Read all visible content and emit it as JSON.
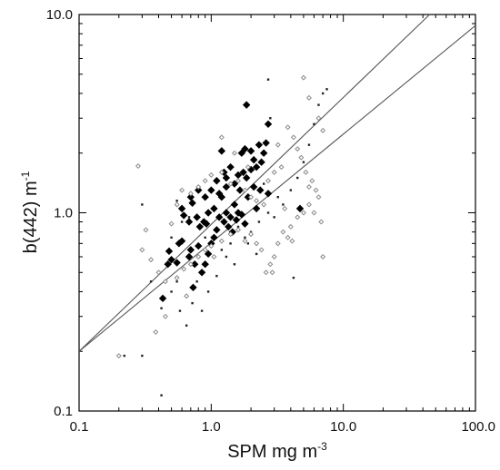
{
  "chart_data": {
    "type": "scatter",
    "title": "",
    "xlabel": "SPM mg m",
    "xlabel_sup": "-3",
    "ylabel": "b(442) m",
    "ylabel_sup": "-1",
    "xscale": "log",
    "yscale": "log",
    "xlim": [
      0.1,
      100.0
    ],
    "ylim": [
      0.1,
      10.0
    ],
    "xticks": [
      0.1,
      1.0,
      10.0,
      100.0
    ],
    "xtick_labels": [
      "0.1",
      "1.0",
      "10.0",
      "100.0"
    ],
    "yticks": [
      0.1,
      1.0,
      10.0
    ],
    "ytick_labels": [
      "0.1",
      "1.0",
      "10.0"
    ],
    "grid": false,
    "colors": {
      "large": "#000000",
      "small": "#222222",
      "open": "#8a8a8a",
      "line": "#555555"
    },
    "series": [
      {
        "marker": "filled-diamond-large",
        "points": [
          [
            0.43,
            0.37
          ],
          [
            0.47,
            0.55
          ],
          [
            0.5,
            0.58
          ],
          [
            0.48,
            0.64
          ],
          [
            0.55,
            0.56
          ],
          [
            0.6,
            0.72
          ],
          [
            0.68,
            0.6
          ],
          [
            0.73,
            0.42
          ],
          [
            0.7,
            0.65
          ],
          [
            0.8,
            0.68
          ],
          [
            0.85,
            0.5
          ],
          [
            0.9,
            0.55
          ],
          [
            0.95,
            0.62
          ],
          [
            1.0,
            0.7
          ],
          [
            0.92,
            0.88
          ],
          [
            1.05,
            0.75
          ],
          [
            1.1,
            0.82
          ],
          [
            0.82,
            0.85
          ],
          [
            0.68,
            0.9
          ],
          [
            0.62,
            0.97
          ],
          [
            0.6,
            1.05
          ],
          [
            0.72,
            1.12
          ],
          [
            0.78,
            0.95
          ],
          [
            0.88,
            0.9
          ],
          [
            0.95,
            1.0
          ],
          [
            1.05,
            1.05
          ],
          [
            1.15,
            0.95
          ],
          [
            1.25,
            0.9
          ],
          [
            1.3,
            1.0
          ],
          [
            1.4,
            0.95
          ],
          [
            1.5,
            1.1
          ],
          [
            1.6,
            1.0
          ],
          [
            1.7,
            0.98
          ],
          [
            1.8,
            0.88
          ],
          [
            1.55,
            0.92
          ],
          [
            1.35,
            0.85
          ],
          [
            1.45,
            0.8
          ],
          [
            1.2,
            1.2
          ],
          [
            1.0,
            1.3
          ],
          [
            1.1,
            1.45
          ],
          [
            1.25,
            1.6
          ],
          [
            1.3,
            1.5
          ],
          [
            1.5,
            1.4
          ],
          [
            1.6,
            1.55
          ],
          [
            1.75,
            1.6
          ],
          [
            1.85,
            1.5
          ],
          [
            2.0,
            1.65
          ],
          [
            2.2,
            1.7
          ],
          [
            2.4,
            1.8
          ],
          [
            2.1,
            1.85
          ],
          [
            1.7,
            2.0
          ],
          [
            1.8,
            2.1
          ],
          [
            2.0,
            2.05
          ],
          [
            2.3,
            2.2
          ],
          [
            2.6,
            2.25
          ],
          [
            2.5,
            2.0
          ],
          [
            1.3,
            1.35
          ],
          [
            1.15,
            1.25
          ],
          [
            0.9,
            1.2
          ],
          [
            0.8,
            1.3
          ],
          [
            0.7,
            1.2
          ],
          [
            1.4,
            1.7
          ],
          [
            2.7,
            2.8
          ],
          [
            1.85,
            3.5
          ],
          [
            2.7,
            1.25
          ],
          [
            4.7,
            1.05
          ],
          [
            2.1,
            1.35
          ],
          [
            1.9,
            1.2
          ],
          [
            2.2,
            1.05
          ],
          [
            2.35,
            1.3
          ],
          [
            0.57,
            0.7
          ],
          [
            0.75,
            0.55
          ],
          [
            1.65,
            1.3
          ],
          [
            1.2,
            2.05
          ]
        ]
      },
      {
        "marker": "filled-dot-small",
        "points": [
          [
            0.22,
            0.19
          ],
          [
            0.42,
            0.12
          ],
          [
            0.3,
            0.19
          ],
          [
            0.35,
            0.45
          ],
          [
            0.42,
            0.33
          ],
          [
            0.5,
            0.4
          ],
          [
            0.55,
            0.45
          ],
          [
            0.58,
            0.32
          ],
          [
            0.65,
            0.27
          ],
          [
            0.72,
            0.35
          ],
          [
            0.78,
            0.45
          ],
          [
            0.85,
            0.32
          ],
          [
            0.95,
            0.4
          ],
          [
            1.1,
            0.48
          ],
          [
            1.3,
            0.6
          ],
          [
            1.5,
            0.55
          ],
          [
            1.8,
            0.75
          ],
          [
            2.0,
            0.8
          ],
          [
            2.3,
            0.9
          ],
          [
            2.7,
            1.0
          ],
          [
            3.0,
            0.95
          ],
          [
            3.5,
            1.1
          ],
          [
            4.0,
            1.3
          ],
          [
            4.5,
            1.5
          ],
          [
            5.0,
            1.8
          ],
          [
            5.5,
            2.2
          ],
          [
            6.0,
            2.8
          ],
          [
            6.5,
            3.5
          ],
          [
            7.0,
            4.0
          ],
          [
            7.5,
            4.2
          ],
          [
            0.3,
            1.1
          ],
          [
            0.55,
            1.15
          ],
          [
            0.6,
            0.9
          ],
          [
            0.9,
            0.75
          ],
          [
            1.2,
            0.65
          ],
          [
            1.4,
            0.7
          ],
          [
            1.6,
            0.85
          ],
          [
            2.5,
            1.4
          ],
          [
            3.2,
            1.2
          ],
          [
            2.8,
            3.0
          ],
          [
            4.2,
            0.47
          ],
          [
            2.2,
            0.62
          ],
          [
            1.9,
            0.7
          ],
          [
            0.68,
            0.95
          ],
          [
            0.5,
            0.75
          ],
          [
            2.7,
            4.7
          ]
        ]
      },
      {
        "marker": "open-diamond-small",
        "points": [
          [
            0.2,
            0.19
          ],
          [
            0.28,
            1.72
          ],
          [
            0.32,
            0.82
          ],
          [
            0.3,
            0.65
          ],
          [
            0.35,
            0.58
          ],
          [
            0.4,
            0.5
          ],
          [
            0.45,
            0.45
          ],
          [
            0.55,
            0.47
          ],
          [
            0.62,
            0.52
          ],
          [
            0.7,
            0.55
          ],
          [
            0.38,
            0.25
          ],
          [
            0.45,
            0.3
          ],
          [
            0.8,
            0.6
          ],
          [
            0.9,
            0.65
          ],
          [
            1.0,
            0.68
          ],
          [
            1.2,
            0.72
          ],
          [
            1.4,
            0.78
          ],
          [
            1.6,
            0.82
          ],
          [
            1.8,
            0.72
          ],
          [
            2.0,
            0.78
          ],
          [
            2.2,
            0.7
          ],
          [
            2.4,
            0.65
          ],
          [
            2.6,
            0.5
          ],
          [
            2.8,
            0.55
          ],
          [
            3.0,
            0.6
          ],
          [
            3.2,
            0.7
          ],
          [
            3.5,
            0.8
          ],
          [
            3.8,
            0.75
          ],
          [
            4.0,
            0.85
          ],
          [
            4.5,
            0.95
          ],
          [
            5.0,
            1.0
          ],
          [
            5.5,
            1.1
          ],
          [
            6.0,
            1.0
          ],
          [
            6.5,
            1.2
          ],
          [
            7.0,
            0.6
          ],
          [
            6.8,
            0.9
          ],
          [
            6.2,
            1.3
          ],
          [
            5.8,
            1.45
          ],
          [
            5.2,
            1.6
          ],
          [
            4.8,
            1.9
          ],
          [
            4.5,
            2.1
          ],
          [
            4.2,
            2.4
          ],
          [
            3.8,
            2.7
          ],
          [
            3.4,
            1.7
          ],
          [
            3.0,
            1.6
          ],
          [
            2.7,
            1.45
          ],
          [
            2.5,
            1.1
          ],
          [
            2.2,
            1.15
          ],
          [
            2.0,
            1.2
          ],
          [
            1.8,
            1.3
          ],
          [
            1.6,
            1.45
          ],
          [
            1.4,
            1.4
          ],
          [
            1.2,
            1.6
          ],
          [
            1.0,
            1.55
          ],
          [
            0.9,
            1.45
          ],
          [
            0.8,
            1.35
          ],
          [
            0.7,
            1.25
          ],
          [
            0.6,
            1.3
          ],
          [
            0.55,
            1.1
          ],
          [
            0.5,
            0.88
          ],
          [
            5.0,
            4.8
          ],
          [
            5.5,
            3.8
          ],
          [
            6.5,
            3.0
          ],
          [
            7.0,
            2.6
          ],
          [
            1.5,
            2.0
          ],
          [
            3.2,
            2.2
          ],
          [
            1.9,
            1.7
          ],
          [
            1.2,
            2.4
          ],
          [
            0.65,
            0.38
          ],
          [
            1.05,
            0.6
          ],
          [
            2.9,
            0.5
          ],
          [
            5.5,
            1.35
          ],
          [
            4.1,
            0.72
          ],
          [
            3.6,
            1.05
          ]
        ]
      }
    ],
    "lines": [
      {
        "x": [
          0.1,
          45.0
        ],
        "y": [
          0.2,
          10.0
        ]
      },
      {
        "x": [
          0.1,
          100.0
        ],
        "y": [
          0.2,
          8.8
        ]
      }
    ]
  }
}
